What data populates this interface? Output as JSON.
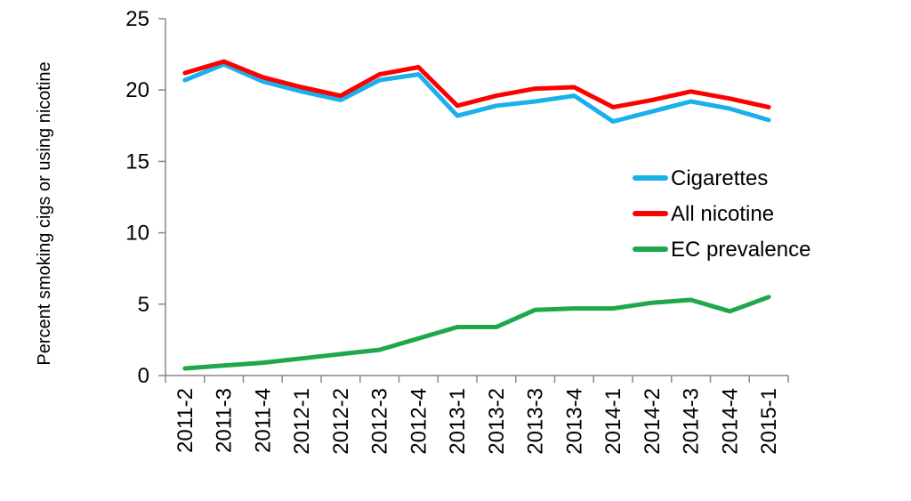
{
  "chart_data": {
    "type": "line",
    "title": "",
    "xlabel": "",
    "ylabel": "Percent smoking cigs or using nicotine",
    "ylim": [
      0,
      25
    ],
    "yticks": [
      0,
      5,
      10,
      15,
      20,
      25
    ],
    "grid": false,
    "legend_position": "right",
    "categories": [
      "2011-2",
      "2011-3",
      "2011-4",
      "2012-1",
      "2012-2",
      "2012-3",
      "2012-4",
      "2013-1",
      "2013-2",
      "2013-3",
      "2013-4",
      "2014-1",
      "2014-2",
      "2014-3",
      "2014-4",
      "2015-1"
    ],
    "series": [
      {
        "name": "Cigarettes",
        "color": "#1ab0ec",
        "values": [
          20.7,
          21.8,
          20.6,
          19.9,
          19.3,
          20.7,
          21.1,
          18.2,
          18.9,
          19.2,
          19.6,
          17.8,
          18.5,
          19.2,
          18.7,
          17.9
        ]
      },
      {
        "name": "All nicotine",
        "color": "#ff0000",
        "values": [
          21.2,
          22.0,
          20.9,
          20.2,
          19.6,
          21.1,
          21.6,
          18.9,
          19.6,
          20.1,
          20.2,
          18.8,
          19.3,
          19.9,
          19.4,
          18.8
        ]
      },
      {
        "name": "EC prevalence",
        "color": "#1ea84a",
        "values": [
          0.5,
          0.7,
          0.9,
          1.2,
          1.5,
          1.8,
          2.6,
          3.4,
          3.4,
          4.6,
          4.7,
          4.7,
          5.1,
          5.3,
          4.5,
          5.5
        ]
      }
    ]
  }
}
